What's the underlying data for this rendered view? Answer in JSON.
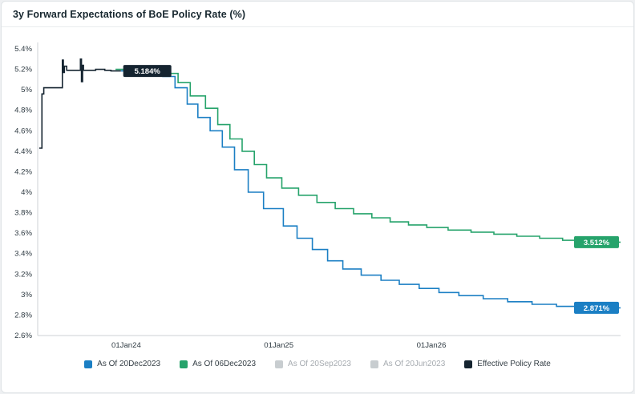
{
  "chart_data": {
    "type": "line",
    "step_interpolation": true,
    "title": "3y Forward Expectations of BoE Policy Rate (%)",
    "grid": false,
    "x_range": [
      2023.42,
      2027.24
    ],
    "y_range": [
      2.6,
      5.4
    ],
    "x_ticks": [
      {
        "v": 2024.0,
        "label": "01Jan24"
      },
      {
        "v": 2025.0,
        "label": "01Jan25"
      },
      {
        "v": 2026.0,
        "label": "01Jan26"
      }
    ],
    "y_ticks": [
      {
        "v": 5.4,
        "label": "5.4%"
      },
      {
        "v": 5.2,
        "label": "5.2%"
      },
      {
        "v": 5.0,
        "label": "5%"
      },
      {
        "v": 4.8,
        "label": "4.8%"
      },
      {
        "v": 4.6,
        "label": "4.6%"
      },
      {
        "v": 4.4,
        "label": "4.4%"
      },
      {
        "v": 4.2,
        "label": "4.2%"
      },
      {
        "v": 4.0,
        "label": "4%"
      },
      {
        "v": 3.8,
        "label": "3.8%"
      },
      {
        "v": 3.6,
        "label": "3.6%"
      },
      {
        "v": 3.4,
        "label": "3.4%"
      },
      {
        "v": 3.2,
        "label": "3.2%"
      },
      {
        "v": 3.0,
        "label": "3%"
      },
      {
        "v": 2.8,
        "label": "2.8%"
      },
      {
        "v": 2.6,
        "label": "2.6%"
      }
    ],
    "series": [
      {
        "name": "As Of 06Dec2023",
        "color": "#26a36b",
        "t_end": 2027.24,
        "end_label": {
          "text": "3.512%",
          "anchor": "axis-right"
        },
        "points": [
          [
            2023.93,
            5.2
          ],
          [
            2024.26,
            5.16
          ],
          [
            2024.34,
            5.07
          ],
          [
            2024.42,
            4.94
          ],
          [
            2024.52,
            4.82
          ],
          [
            2024.6,
            4.66
          ],
          [
            2024.68,
            4.52
          ],
          [
            2024.76,
            4.4
          ],
          [
            2024.84,
            4.27
          ],
          [
            2024.92,
            4.14
          ],
          [
            2025.02,
            4.04
          ],
          [
            2025.13,
            3.97
          ],
          [
            2025.25,
            3.9
          ],
          [
            2025.37,
            3.84
          ],
          [
            2025.49,
            3.79
          ],
          [
            2025.61,
            3.75
          ],
          [
            2025.73,
            3.71
          ],
          [
            2025.85,
            3.68
          ],
          [
            2025.97,
            3.655
          ],
          [
            2026.11,
            3.63
          ],
          [
            2026.26,
            3.61
          ],
          [
            2026.41,
            3.59
          ],
          [
            2026.56,
            3.57
          ],
          [
            2026.71,
            3.55
          ],
          [
            2026.86,
            3.53
          ],
          [
            2027.0,
            3.512
          ]
        ]
      },
      {
        "name": "As Of 20Dec2023",
        "color": "#1b7fc4",
        "t_end": 2027.24,
        "end_label": {
          "text": "2.871%",
          "anchor": "axis-right"
        },
        "points": [
          [
            2023.965,
            5.184
          ],
          [
            2024.24,
            5.13
          ],
          [
            2024.32,
            5.02
          ],
          [
            2024.4,
            4.86
          ],
          [
            2024.47,
            4.73
          ],
          [
            2024.55,
            4.6
          ],
          [
            2024.63,
            4.44
          ],
          [
            2024.71,
            4.22
          ],
          [
            2024.8,
            4.0
          ],
          [
            2024.9,
            3.84
          ],
          [
            2025.03,
            3.67
          ],
          [
            2025.12,
            3.55
          ],
          [
            2025.22,
            3.44
          ],
          [
            2025.32,
            3.33
          ],
          [
            2025.42,
            3.25
          ],
          [
            2025.54,
            3.19
          ],
          [
            2025.67,
            3.14
          ],
          [
            2025.79,
            3.1
          ],
          [
            2025.92,
            3.06
          ],
          [
            2026.05,
            3.02
          ],
          [
            2026.18,
            2.99
          ],
          [
            2026.34,
            2.96
          ],
          [
            2026.5,
            2.93
          ],
          [
            2026.66,
            2.905
          ],
          [
            2026.82,
            2.885
          ],
          [
            2026.97,
            2.871
          ]
        ]
      },
      {
        "name": "Effective Policy Rate",
        "color": "#152430",
        "t_end": 2023.965,
        "end_label": {
          "text": "5.184%",
          "anchor": "line-end"
        },
        "points": [
          [
            2023.43,
            4.43
          ],
          [
            2023.448,
            4.96
          ],
          [
            2023.46,
            5.02
          ],
          [
            2023.582,
            5.29
          ],
          [
            2023.588,
            5.17
          ],
          [
            2023.595,
            5.23
          ],
          [
            2023.61,
            5.19
          ],
          [
            2023.7,
            5.3
          ],
          [
            2023.707,
            5.08
          ],
          [
            2023.714,
            5.24
          ],
          [
            2023.72,
            5.19
          ],
          [
            2023.8,
            5.2
          ],
          [
            2023.86,
            5.19
          ],
          [
            2023.9,
            5.184
          ]
        ]
      }
    ],
    "legend": {
      "items": [
        {
          "label": "As Of 20Dec2023",
          "color": "#1b7fc4",
          "muted": false
        },
        {
          "label": "As Of 06Dec2023",
          "color": "#26a36b",
          "muted": false
        },
        {
          "label": "As Of 20Sep2023",
          "color": "#c8cdd0",
          "muted": true
        },
        {
          "label": "As Of 20Jun2023",
          "color": "#c8cdd0",
          "muted": true
        },
        {
          "label": "Effective Policy Rate",
          "color": "#152430",
          "muted": false
        }
      ]
    }
  }
}
